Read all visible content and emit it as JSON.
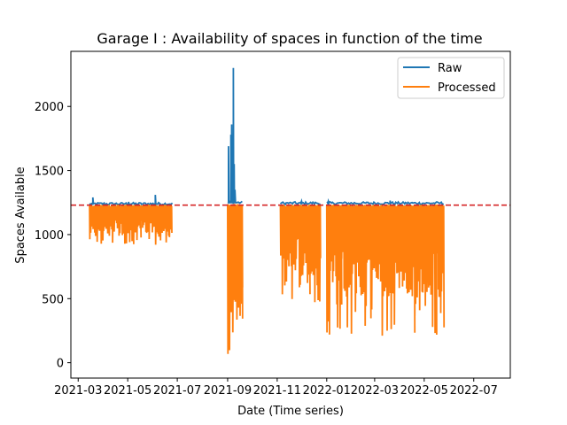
{
  "chart_data": {
    "type": "line",
    "title": "Garage I : Availability of spaces in function of the time",
    "xlabel": "Date (Time series)",
    "ylabel": "Spaces Available",
    "xlim": [
      "2021-02-20",
      "2022-08-15"
    ],
    "ylim": [
      -120,
      2430
    ],
    "x_ticks": [
      "2021-03",
      "2021-05",
      "2021-07",
      "2021-09",
      "2021-11",
      "2022-01",
      "2022-03",
      "2022-05",
      "2022-07"
    ],
    "y_ticks": [
      0,
      500,
      1000,
      1500,
      2000
    ],
    "grid": false,
    "legend_position": "top-right",
    "reference_line": {
      "value": 1230,
      "color": "#d62728",
      "style": "dashed"
    },
    "series": [
      {
        "name": "Raw",
        "color": "#1f77b4",
        "segments": [
          {
            "start": "2021-03-15",
            "end": "2021-06-25",
            "baseline": 1240,
            "points": [
              [
                "2021-03-19",
                1290
              ],
              [
                "2021-06-04",
                1310
              ],
              [
                "2021-05-02",
                1255
              ]
            ]
          },
          {
            "start": "2021-09-01",
            "end": "2021-09-20",
            "baseline": 1250,
            "points": [
              [
                "2021-09-02",
                1690
              ],
              [
                "2021-09-05",
                1780
              ],
              [
                "2021-09-06",
                1860
              ],
              [
                "2021-09-08",
                2300
              ],
              [
                "2021-09-09",
                1550
              ],
              [
                "2021-09-10",
                1350
              ]
            ]
          },
          {
            "start": "2021-11-05",
            "end": "2021-12-25",
            "baseline": 1245,
            "points": [
              [
                "2021-12-01",
                1260
              ]
            ]
          },
          {
            "start": "2022-01-01",
            "end": "2022-05-25",
            "baseline": 1245,
            "points": [
              [
                "2022-01-03",
                1260
              ],
              [
                "2022-03-20",
                1265
              ]
            ]
          }
        ]
      },
      {
        "name": "Processed",
        "color": "#ff7f0e",
        "segments": [
          {
            "start": "2021-03-15",
            "end": "2021-06-25",
            "high": 1235,
            "low_range": [
              920,
              1130
            ]
          },
          {
            "start": "2021-09-01",
            "end": "2021-09-20",
            "high": 1240,
            "low_range": [
              0,
              700
            ]
          },
          {
            "start": "2021-11-05",
            "end": "2021-12-25",
            "high": 1235,
            "low_range": [
              460,
              1000
            ]
          },
          {
            "start": "2022-01-01",
            "end": "2022-05-25",
            "high": 1235,
            "low_range": [
              210,
              950
            ]
          }
        ]
      }
    ]
  }
}
